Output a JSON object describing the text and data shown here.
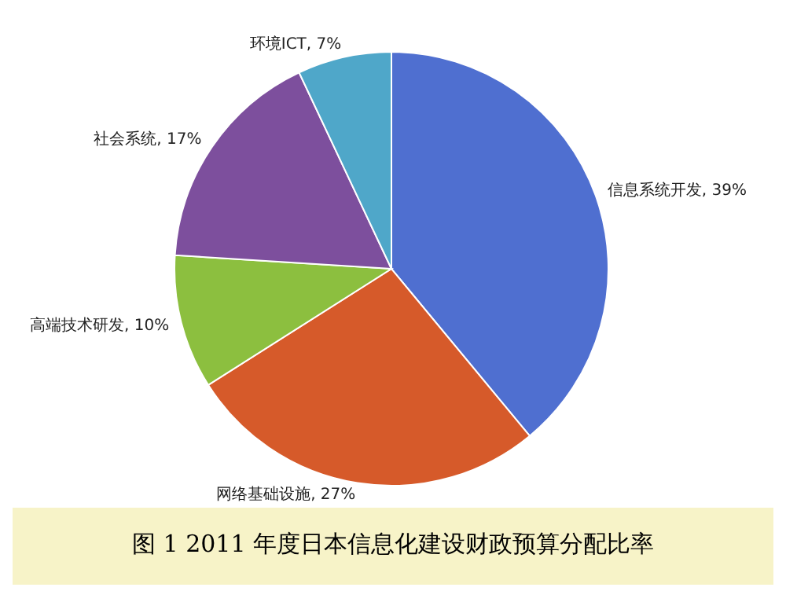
{
  "chart_data": {
    "type": "pie",
    "title": "图 1 2011 年度日本信息化建设财政预算分配比率",
    "categories": [
      "信息系统开发",
      "网络基础设施",
      "高端技术研发",
      "社会系统",
      "环境ICT"
    ],
    "values": [
      39,
      27,
      10,
      17,
      7
    ],
    "value_labels": [
      "39%",
      "27%",
      "10%",
      "17%",
      "7%"
    ],
    "colors": [
      "#4f6fd0",
      "#d65a2a",
      "#8cbf3f",
      "#7d4f9d",
      "#4fa7c9"
    ]
  }
}
